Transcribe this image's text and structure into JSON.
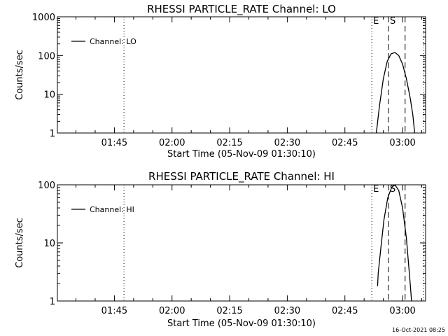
{
  "chart_data": [
    {
      "type": "line",
      "title": "RHESSI PARTICLE_RATE Channel: LO",
      "xlabel": "Start Time (05-Nov-09 01:30:10)",
      "ylabel": "Counts/sec",
      "yscale": "log",
      "xlim": [
        "01:30:10",
        "03:06:00"
      ],
      "ylim": [
        1,
        1000
      ],
      "xticks": [
        "01:45",
        "02:00",
        "02:15",
        "02:30",
        "02:45",
        "03:00"
      ],
      "yticks": [
        "1",
        "10",
        "100",
        "1000"
      ],
      "legend": {
        "label": "Channel: LO",
        "placement": "top-left"
      },
      "markers": [
        {
          "time": "01:47:30",
          "style": "dotted",
          "label": ""
        },
        {
          "time": "02:52:00",
          "style": "dotted",
          "label": "E"
        },
        {
          "time": "02:56:20",
          "style": "dashed",
          "label": "S"
        },
        {
          "time": "03:00:40",
          "style": "dashed",
          "label": ""
        },
        {
          "time": "03:05:30",
          "style": "dotted",
          "label": ""
        }
      ],
      "series": [
        {
          "x": [
            "02:53:10",
            "02:54:00",
            "02:55:00",
            "02:56:00",
            "02:57:00",
            "02:58:00",
            "02:59:00",
            "03:00:00",
            "03:01:00",
            "03:02:00",
            "03:02:40",
            "03:03:10"
          ],
          "y": [
            1,
            5,
            25,
            70,
            110,
            120,
            100,
            60,
            25,
            8,
            3,
            1
          ]
        }
      ]
    },
    {
      "type": "line",
      "title": "RHESSI PARTICLE_RATE Channel: HI",
      "xlabel": "Start Time (05-Nov-09 01:30:10)",
      "ylabel": "Counts/sec",
      "yscale": "log",
      "xlim": [
        "01:30:10",
        "03:06:00"
      ],
      "ylim": [
        1,
        100
      ],
      "xticks": [
        "01:45",
        "02:00",
        "02:15",
        "02:30",
        "02:45",
        "03:00"
      ],
      "yticks": [
        "1",
        "10",
        "100"
      ],
      "legend": {
        "label": "Channel: HI",
        "placement": "top-left"
      },
      "markers": [
        {
          "time": "01:47:30",
          "style": "dotted",
          "label": ""
        },
        {
          "time": "02:52:00",
          "style": "dotted",
          "label": "E"
        },
        {
          "time": "02:56:20",
          "style": "dashed",
          "label": "S"
        },
        {
          "time": "03:00:40",
          "style": "dashed",
          "label": ""
        },
        {
          "time": "03:05:30",
          "style": "dotted",
          "label": ""
        }
      ],
      "series": [
        {
          "x": [
            "02:53:30",
            "02:53:40",
            "02:54:20",
            "02:55:10",
            "02:56:10",
            "02:57:10",
            "02:58:00",
            "02:59:00",
            "03:00:00",
            "03:01:00",
            "03:02:00",
            "03:02:20"
          ],
          "y": [
            1.8,
            3,
            8,
            25,
            60,
            90,
            100,
            80,
            40,
            12,
            2,
            1
          ]
        }
      ]
    }
  ],
  "timestamp": "16-Oct-2021 08:25"
}
